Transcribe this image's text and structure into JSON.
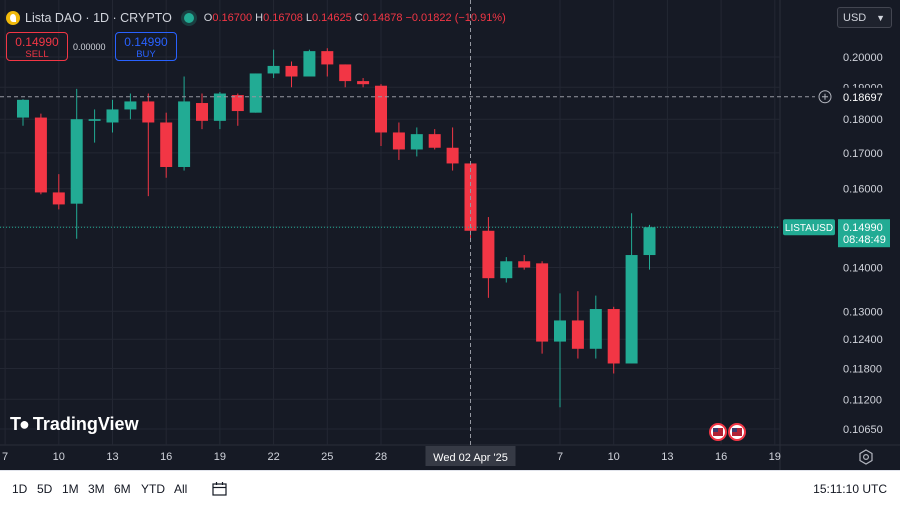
{
  "header": {
    "symbol_title": "Lista DAO · 1D · CRYPTO",
    "ohlc": [
      {
        "key": "O",
        "value": "0.16700"
      },
      {
        "key": "H",
        "value": "0.16708"
      },
      {
        "key": "L",
        "value": "0.14625"
      },
      {
        "key": "C",
        "value": "0.14878"
      }
    ],
    "change": "−0.01822 (−10.91%)",
    "currency": "USD"
  },
  "trade": {
    "sell_price": "0.14990",
    "sell_label": "SELL",
    "spread": "0.00000",
    "buy_price": "0.14990",
    "buy_label": "BUY"
  },
  "brand": "TradingView",
  "toolbar": {
    "timeframes": [
      "1D",
      "5D",
      "1M",
      "3M",
      "6M",
      "YTD",
      "All"
    ],
    "time": "15:11:10 UTC"
  },
  "colors": {
    "up": "#22ab94",
    "down": "#f23645",
    "background": "#161a25",
    "grid": "#232733",
    "text": "#d1d4dc",
    "price_tag": "#22ab94"
  },
  "chart_data": {
    "type": "candlestick",
    "symbol": "LISTAUSD",
    "interval": "1D",
    "y_scale": "log",
    "ylim": [
      0.1,
      0.215
    ],
    "y_ticks": [
      "0.20000",
      "0.19000",
      "0.18000",
      "0.17000",
      "0.16000",
      "0.15000",
      "0.14000",
      "0.13000",
      "0.12400",
      "0.11800",
      "0.11200",
      "0.10650"
    ],
    "x_ticks": [
      {
        "label": "7",
        "day": -1
      },
      {
        "label": "10",
        "day": 2
      },
      {
        "label": "13",
        "day": 5
      },
      {
        "label": "16",
        "day": 8
      },
      {
        "label": "19",
        "day": 11
      },
      {
        "label": "22",
        "day": 14
      },
      {
        "label": "25",
        "day": 17
      },
      {
        "label": "28",
        "day": 20
      },
      {
        "label": "7",
        "day": 30
      },
      {
        "label": "10",
        "day": 33
      },
      {
        "label": "13",
        "day": 36
      },
      {
        "label": "16",
        "day": 39
      },
      {
        "label": "19",
        "day": 42
      }
    ],
    "crosshair": {
      "day": 25,
      "date_label": "Wed 02 Apr '25",
      "price": "0.18697"
    },
    "last_price": {
      "label": "LISTAUSD",
      "price": "0.14990",
      "countdown": "08:48:49"
    },
    "candles": [
      {
        "day": 0,
        "o": 0.1805,
        "h": 0.1862,
        "l": 0.178,
        "c": 0.186
      },
      {
        "day": 1,
        "o": 0.1805,
        "h": 0.1817,
        "l": 0.1585,
        "c": 0.159
      },
      {
        "day": 2,
        "o": 0.159,
        "h": 0.164,
        "l": 0.1545,
        "c": 0.1558
      },
      {
        "day": 3,
        "o": 0.156,
        "h": 0.1895,
        "l": 0.147,
        "c": 0.18
      },
      {
        "day": 4,
        "o": 0.1795,
        "h": 0.183,
        "l": 0.173,
        "c": 0.18
      },
      {
        "day": 5,
        "o": 0.179,
        "h": 0.186,
        "l": 0.176,
        "c": 0.183
      },
      {
        "day": 6,
        "o": 0.183,
        "h": 0.188,
        "l": 0.18,
        "c": 0.1855
      },
      {
        "day": 7,
        "o": 0.1855,
        "h": 0.188,
        "l": 0.158,
        "c": 0.179
      },
      {
        "day": 8,
        "o": 0.179,
        "h": 0.182,
        "l": 0.163,
        "c": 0.166
      },
      {
        "day": 9,
        "o": 0.166,
        "h": 0.1935,
        "l": 0.165,
        "c": 0.1855
      },
      {
        "day": 10,
        "o": 0.185,
        "h": 0.188,
        "l": 0.177,
        "c": 0.1795
      },
      {
        "day": 11,
        "o": 0.1795,
        "h": 0.1885,
        "l": 0.177,
        "c": 0.188
      },
      {
        "day": 12,
        "o": 0.1875,
        "h": 0.188,
        "l": 0.178,
        "c": 0.1825
      },
      {
        "day": 13,
        "o": 0.182,
        "h": 0.1945,
        "l": 0.182,
        "c": 0.1945
      },
      {
        "day": 14,
        "o": 0.1945,
        "h": 0.2025,
        "l": 0.193,
        "c": 0.197
      },
      {
        "day": 15,
        "o": 0.197,
        "h": 0.1985,
        "l": 0.19,
        "c": 0.1935
      },
      {
        "day": 16,
        "o": 0.1935,
        "h": 0.2025,
        "l": 0.1935,
        "c": 0.202
      },
      {
        "day": 17,
        "o": 0.202,
        "h": 0.203,
        "l": 0.1935,
        "c": 0.1975
      },
      {
        "day": 18,
        "o": 0.1975,
        "h": 0.1975,
        "l": 0.19,
        "c": 0.192
      },
      {
        "day": 19,
        "o": 0.192,
        "h": 0.193,
        "l": 0.19,
        "c": 0.191
      },
      {
        "day": 20,
        "o": 0.1905,
        "h": 0.191,
        "l": 0.172,
        "c": 0.176
      },
      {
        "day": 21,
        "o": 0.176,
        "h": 0.179,
        "l": 0.168,
        "c": 0.171
      },
      {
        "day": 22,
        "o": 0.171,
        "h": 0.1775,
        "l": 0.169,
        "c": 0.1755
      },
      {
        "day": 23,
        "o": 0.1755,
        "h": 0.177,
        "l": 0.171,
        "c": 0.1715
      },
      {
        "day": 24,
        "o": 0.1715,
        "h": 0.1775,
        "l": 0.165,
        "c": 0.167
      },
      {
        "day": 25,
        "o": 0.167,
        "h": 0.167,
        "l": 0.1465,
        "c": 0.149
      },
      {
        "day": 26,
        "o": 0.149,
        "h": 0.1525,
        "l": 0.133,
        "c": 0.1375
      },
      {
        "day": 27,
        "o": 0.1375,
        "h": 0.1425,
        "l": 0.1365,
        "c": 0.1415
      },
      {
        "day": 28,
        "o": 0.1415,
        "h": 0.143,
        "l": 0.1395,
        "c": 0.14
      },
      {
        "day": 29,
        "o": 0.141,
        "h": 0.1415,
        "l": 0.121,
        "c": 0.1235
      },
      {
        "day": 30,
        "o": 0.1235,
        "h": 0.134,
        "l": 0.1105,
        "c": 0.128
      },
      {
        "day": 31,
        "o": 0.128,
        "h": 0.1345,
        "l": 0.12,
        "c": 0.122
      },
      {
        "day": 32,
        "o": 0.122,
        "h": 0.1335,
        "l": 0.12,
        "c": 0.1305
      },
      {
        "day": 33,
        "o": 0.1305,
        "h": 0.131,
        "l": 0.117,
        "c": 0.119
      },
      {
        "day": 34,
        "o": 0.119,
        "h": 0.1535,
        "l": 0.119,
        "c": 0.143
      },
      {
        "day": 35,
        "o": 0.143,
        "h": 0.1505,
        "l": 0.1395,
        "c": 0.1499
      }
    ]
  }
}
